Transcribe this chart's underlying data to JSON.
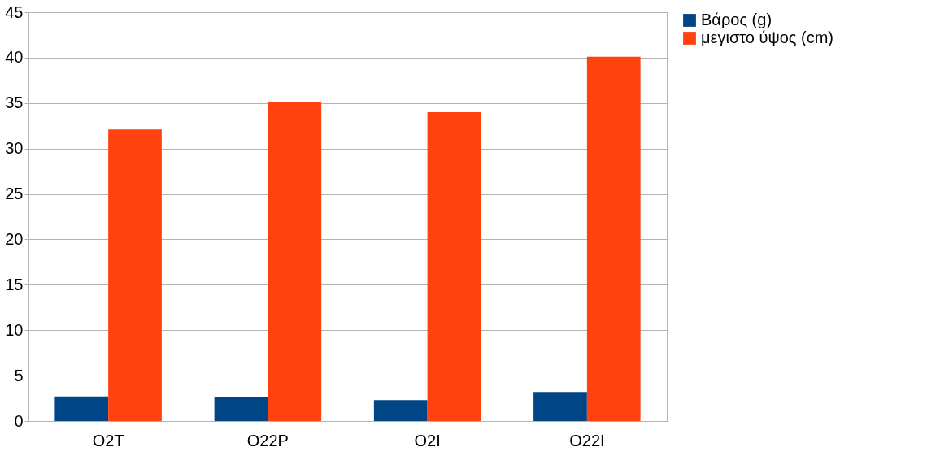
{
  "chart_data": {
    "type": "bar",
    "categories": [
      "O2T",
      "O22P",
      "O2I",
      "O22I"
    ],
    "series": [
      {
        "name": "Βάρος (g)",
        "color": "#004586",
        "values": [
          2.7,
          2.6,
          2.3,
          3.2
        ]
      },
      {
        "name": "μεγιστο ύψος (cm)",
        "color": "#ff420e",
        "values": [
          32.1,
          35.1,
          34.0,
          40.1
        ]
      }
    ],
    "ylim": [
      0,
      45
    ],
    "yticks": [
      0,
      5,
      10,
      15,
      20,
      25,
      30,
      35,
      40,
      45
    ],
    "grid": "y",
    "legend": "right"
  }
}
